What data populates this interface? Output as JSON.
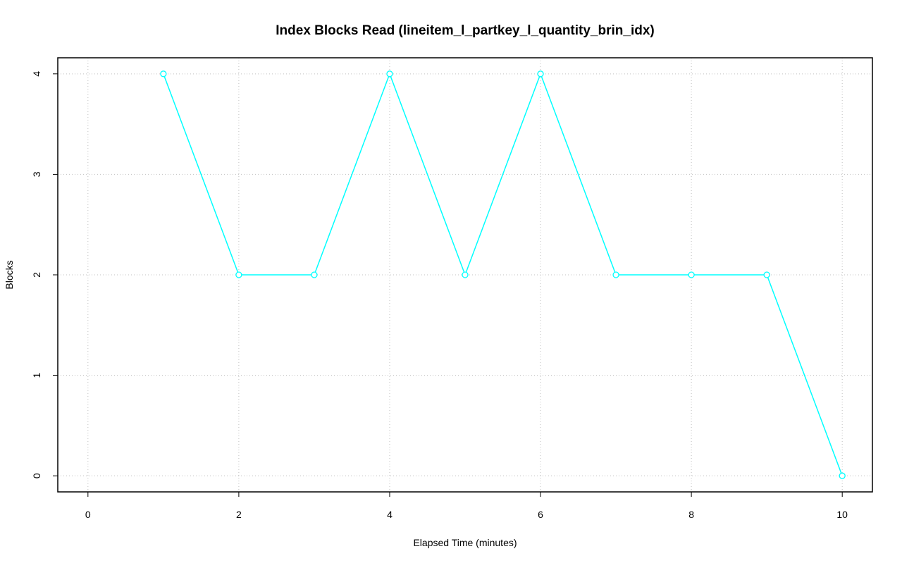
{
  "chart_data": {
    "type": "line",
    "title": "Index Blocks Read (lineitem_l_partkey_l_quantity_brin_idx)",
    "x_label": "Elapsed Time (minutes)",
    "y_label": "Blocks",
    "x": [
      1,
      2,
      3,
      4,
      5,
      6,
      7,
      8,
      9,
      10
    ],
    "series": [
      {
        "color": "#00ffff",
        "values": [
          4,
          2,
          2,
          4,
          2,
          4,
          2,
          2,
          2,
          0
        ]
      }
    ],
    "xlim": [
      -0.4,
      10.4
    ],
    "xticks": [
      0,
      2,
      4,
      6,
      8,
      10
    ],
    "ylim": [
      -0.16,
      4.16
    ],
    "yticks": [
      0,
      1,
      2,
      3,
      4
    ],
    "grid": true,
    "markers": "open-circle"
  }
}
